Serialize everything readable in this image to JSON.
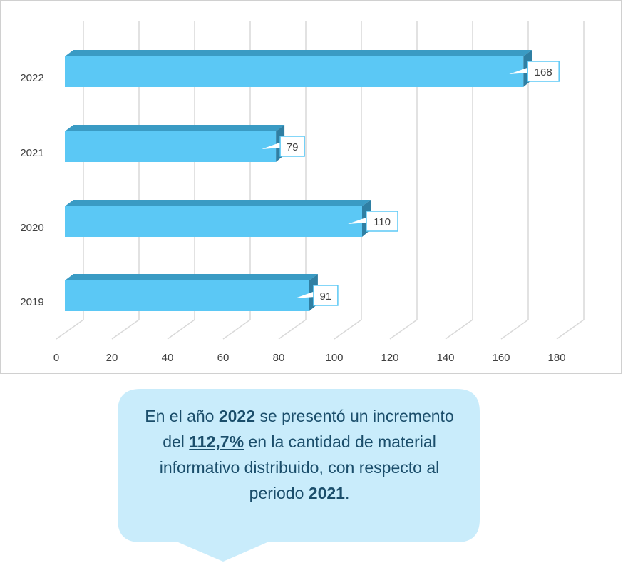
{
  "chart_data": {
    "type": "bar",
    "orientation": "horizontal",
    "categories": [
      "2019",
      "2020",
      "2021",
      "2022"
    ],
    "values": [
      91,
      110,
      79,
      168
    ],
    "xlim": [
      0,
      180
    ],
    "xticks": [
      "0",
      "20",
      "40",
      "60",
      "80",
      "100",
      "120",
      "140",
      "160",
      "180"
    ],
    "grid": true,
    "bar_color": "#5bc8f5",
    "bar_top_color": "#3a9bc4",
    "bar_side_color": "#2f7fa3"
  },
  "callout": {
    "t1": "En el año ",
    "year1": "2022",
    "t2": " se presentó un incremento del ",
    "pct": "112,7%",
    "t3": " en la cantidad de material informativo distribuido, con respecto al periodo ",
    "year2": "2021",
    "t4": ".",
    "bg_color": "#c9ecfb",
    "text_color": "#1b4e6b"
  }
}
